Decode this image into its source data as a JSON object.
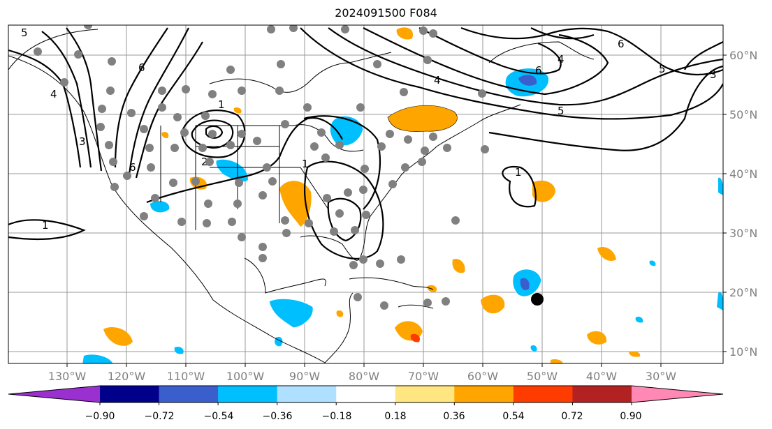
{
  "title": "2024091500 F084",
  "latitude_labels": [
    "10°N",
    "20°N",
    "30°N",
    "40°N",
    "50°N",
    "60°N"
  ],
  "longitude_labels": [
    "130°W",
    "120°W",
    "110°W",
    "100°W",
    "90°W",
    "80°W",
    "70°W",
    "60°W",
    "50°W",
    "40°W",
    "30°W"
  ],
  "colorbar": {
    "ticks": [
      "−0.90",
      "−0.72",
      "−0.54",
      "−0.36",
      "−0.18",
      "0.18",
      "0.36",
      "0.54",
      "0.72",
      "0.90"
    ],
    "colors": [
      "#9b30d0",
      "#00008b",
      "#3a5fcd",
      "#00bfff",
      "#b0e0ff",
      "#ffffff",
      "#ffe680",
      "#ffa500",
      "#ff3c00",
      "#b22222",
      "#ff88b4"
    ]
  },
  "contour_labels": [
    "5",
    "6",
    "4",
    "1",
    "6",
    "3",
    "2",
    "1",
    "5",
    "4",
    "6",
    "3",
    "1",
    "5",
    "6",
    "4",
    "1"
  ],
  "storm_marker": "black-circle"
}
